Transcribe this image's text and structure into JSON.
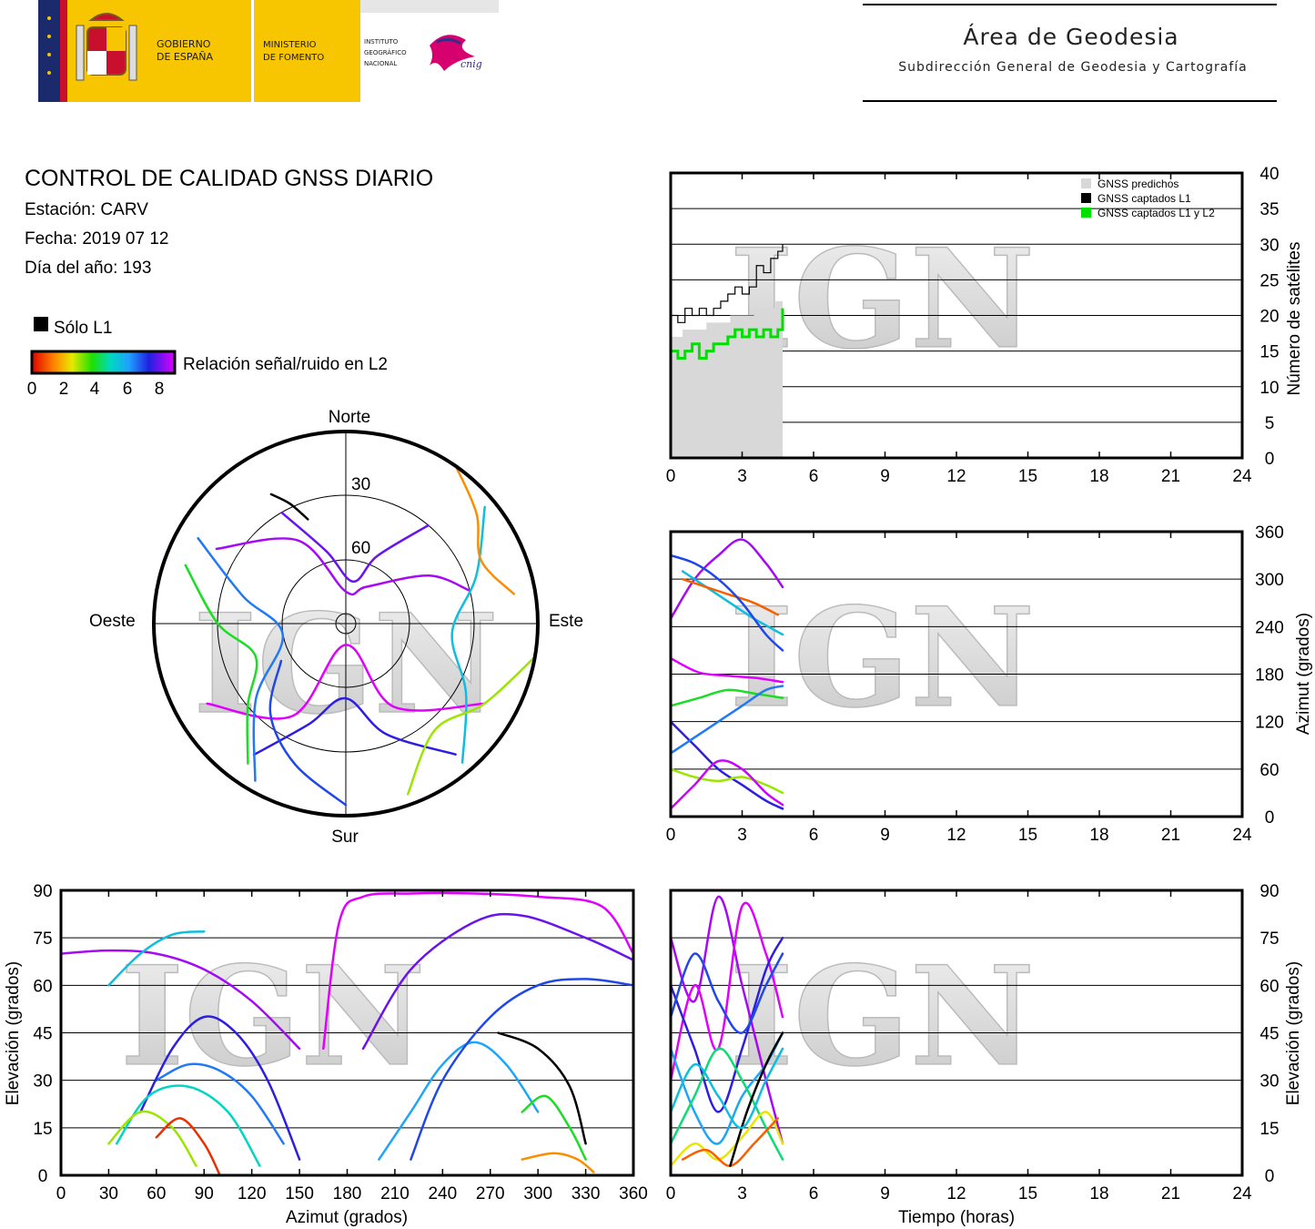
{
  "header": {
    "gov_line1": "GOBIERNO",
    "gov_line2": "DE ESPAÑA",
    "min_line1": "MINISTERIO",
    "min_line2": "DE FOMENTO",
    "ign_line1": "INSTITUTO",
    "ign_line2": "GEOGRÁFICO",
    "ign_line3": "NACIONAL",
    "cnig_text": "cnig",
    "area_title": "Área de Geodesia",
    "area_subtitle": "Subdirección General de Geodesia y Cartografía",
    "colors": {
      "red": "#c8102e",
      "yellow": "#f7c600",
      "blue": "#1a2a6c"
    }
  },
  "report": {
    "title": "CONTROL DE CALIDAD GNSS DIARIO",
    "station": "Estación: CARV",
    "date": "Fecha: 2019 07 12",
    "doy": "Día del año: 193",
    "legend_l1": "Sólo L1",
    "legend_l2": "Relación señal/ruido en L2",
    "colorbar_ticks": [
      "0",
      "2",
      "4",
      "6",
      "8"
    ]
  },
  "watermark": "IGN",
  "chart_data": [
    {
      "type": "line",
      "id": "satellite-count",
      "xlim": [
        0,
        24
      ],
      "ylim": [
        0,
        40
      ],
      "xticks": [
        "0",
        "3",
        "6",
        "9",
        "12",
        "15",
        "18",
        "21",
        "24"
      ],
      "yticks": [
        "0",
        "5",
        "10",
        "15",
        "20",
        "25",
        "30",
        "35",
        "40"
      ],
      "ylabel": "Número de satélites",
      "legend": [
        "GNSS predichos",
        "GNSS captados L1",
        "GNSS captados L1 y L2"
      ],
      "colors": {
        "predicted": "#d8d8d8",
        "l1": "#000000",
        "l1l2": "#00e000"
      },
      "series": [
        {
          "name": "GNSS predichos",
          "x": [
            0.0,
            0.5,
            1.0,
            1.5,
            2.0,
            2.5,
            3.0,
            3.5,
            4.0,
            4.4,
            4.7
          ],
          "values": [
            17,
            18,
            18,
            19,
            19,
            20,
            20,
            21,
            21,
            22,
            23
          ]
        },
        {
          "name": "GNSS captados L1",
          "x": [
            0.0,
            0.3,
            0.6,
            0.9,
            1.2,
            1.5,
            1.8,
            2.1,
            2.4,
            2.7,
            3.0,
            3.3,
            3.6,
            3.9,
            4.2,
            4.5,
            4.7
          ],
          "values": [
            20,
            19,
            21,
            20,
            21,
            20,
            21,
            22,
            23,
            24,
            23,
            24,
            27,
            26,
            28,
            29,
            30
          ]
        },
        {
          "name": "GNSS captados L1 y L2",
          "x": [
            0.0,
            0.3,
            0.6,
            0.9,
            1.2,
            1.5,
            1.8,
            2.1,
            2.4,
            2.7,
            3.0,
            3.3,
            3.6,
            3.9,
            4.2,
            4.5,
            4.7
          ],
          "values": [
            15,
            14,
            15,
            16,
            14,
            15,
            16,
            16,
            17,
            18,
            17,
            18,
            17,
            18,
            17,
            18,
            21
          ]
        }
      ]
    },
    {
      "type": "scatter",
      "id": "azimuth-time",
      "xlim": [
        0,
        24
      ],
      "ylim": [
        0,
        360
      ],
      "xticks": [
        "0",
        "3",
        "6",
        "9",
        "12",
        "15",
        "18",
        "21",
        "24"
      ],
      "yticks": [
        "0",
        "60",
        "120",
        "180",
        "240",
        "300",
        "360"
      ],
      "ylabel": "Azimut (grados)",
      "tracks": [
        {
          "snr": 8.5,
          "x": [
            0.0,
            1.0,
            2.0,
            3.0,
            4.0,
            4.7
          ],
          "values": [
            250,
            300,
            330,
            350,
            320,
            290
          ]
        },
        {
          "snr": 9.0,
          "x": [
            0.0,
            1.2,
            2.4,
            3.6,
            4.7
          ],
          "values": [
            200,
            182,
            178,
            175,
            170
          ]
        },
        {
          "snr": 7.5,
          "x": [
            0.0,
            1.0,
            2.0,
            3.0,
            4.0,
            4.7
          ],
          "values": [
            120,
            90,
            60,
            40,
            20,
            10
          ]
        },
        {
          "snr": 5.5,
          "x": [
            0.5,
            1.5,
            2.5,
            3.5,
            4.7
          ],
          "values": [
            310,
            290,
            270,
            250,
            230
          ]
        },
        {
          "snr": 4.0,
          "x": [
            0.0,
            1.2,
            2.4,
            3.6,
            4.7
          ],
          "values": [
            140,
            150,
            160,
            155,
            150
          ]
        },
        {
          "snr": 3.0,
          "x": [
            0.0,
            1.0,
            2.0,
            3.0,
            4.0,
            4.7
          ],
          "values": [
            60,
            50,
            45,
            50,
            40,
            30
          ]
        },
        {
          "snr": 6.5,
          "x": [
            0.0,
            1.0,
            2.0,
            3.0,
            4.0,
            4.7
          ],
          "values": [
            80,
            100,
            120,
            140,
            160,
            165
          ]
        },
        {
          "snr": 8.8,
          "x": [
            0.0,
            1.0,
            2.0,
            3.0,
            4.0,
            4.7
          ],
          "values": [
            10,
            40,
            70,
            60,
            30,
            15
          ]
        },
        {
          "snr": 1.0,
          "x": [
            0.5,
            1.5,
            2.5,
            3.5,
            4.5
          ],
          "values": [
            300,
            290,
            280,
            270,
            255
          ]
        },
        {
          "snr": 7.0,
          "x": [
            0.0,
            1.0,
            2.0,
            3.0,
            4.0,
            4.7
          ],
          "values": [
            330,
            320,
            300,
            270,
            230,
            210
          ]
        }
      ]
    },
    {
      "type": "scatter",
      "id": "skyplot",
      "labels": {
        "north": "Norte",
        "south": "Sur",
        "east": "Este",
        "west": "Oeste"
      },
      "ring_labels": [
        "30",
        "60"
      ],
      "tracks": [
        {
          "snr": 8.5,
          "az": [
            300,
            330,
            0,
            30,
            60,
            75
          ],
          "el": [
            20,
            45,
            75,
            70,
            45,
            30
          ]
        },
        {
          "snr": 9.0,
          "az": [
            240,
            210,
            180,
            150,
            120
          ],
          "el": [
            15,
            40,
            80,
            45,
            15
          ]
        },
        {
          "snr": 7.5,
          "az": [
            140,
            160,
            180,
            200,
            215
          ],
          "el": [
            10,
            35,
            55,
            40,
            15
          ]
        },
        {
          "snr": 5.5,
          "az": [
            50,
            70,
            95,
            120,
            140
          ],
          "el": [
            5,
            25,
            40,
            25,
            5
          ]
        },
        {
          "snr": 4.0,
          "az": [
            290,
            270,
            250,
            230,
            215
          ],
          "el": [
            10,
            30,
            45,
            30,
            10
          ]
        },
        {
          "snr": 1.5,
          "az": [
            35,
            50,
            65,
            80
          ],
          "el": [
            0,
            10,
            20,
            10
          ]
        },
        {
          "snr": 6.5,
          "az": [
            210,
            230,
            260,
            285,
            300
          ],
          "el": [
            5,
            35,
            60,
            40,
            10
          ]
        },
        {
          "snr": 8.0,
          "az": [
            330,
            345,
            10,
            25,
            40
          ],
          "el": [
            30,
            55,
            70,
            55,
            30
          ]
        },
        {
          "snr": 0.0,
          "az": [
            330,
            335,
            340
          ],
          "el": [
            20,
            28,
            38
          ],
          "l1only": true
        },
        {
          "snr": 3.0,
          "az": [
            100,
            120,
            140,
            160
          ],
          "el": [
            0,
            15,
            25,
            5
          ]
        },
        {
          "snr": 7.0,
          "az": [
            180,
            200,
            220,
            240
          ],
          "el": [
            5,
            20,
            35,
            55
          ]
        }
      ]
    },
    {
      "type": "scatter",
      "id": "elevation-azimuth",
      "xlim": [
        0,
        360
      ],
      "ylim": [
        0,
        90
      ],
      "xticks": [
        "0",
        "30",
        "60",
        "90",
        "120",
        "150",
        "180",
        "210",
        "240",
        "270",
        "300",
        "330",
        "360"
      ],
      "yticks": [
        "0",
        "15",
        "30",
        "45",
        "60",
        "75",
        "90"
      ],
      "xlabel": "Azimut (grados)",
      "ylabel": "Elevación (grados)",
      "tracks": [
        {
          "snr": 8.5,
          "x": [
            0,
            30,
            60,
            90,
            120,
            150
          ],
          "values": [
            70,
            71,
            70,
            65,
            55,
            40
          ]
        },
        {
          "snr": 9.0,
          "x": [
            165,
            175,
            190,
            220,
            260,
            300,
            340,
            360
          ],
          "values": [
            40,
            80,
            88,
            89,
            89,
            88,
            85,
            70
          ]
        },
        {
          "snr": 8.0,
          "x": [
            190,
            220,
            260,
            290,
            330,
            360
          ],
          "values": [
            40,
            65,
            80,
            82,
            75,
            68
          ]
        },
        {
          "snr": 6.5,
          "x": [
            60,
            80,
            100,
            120,
            140
          ],
          "values": [
            30,
            35,
            33,
            25,
            10
          ]
        },
        {
          "snr": 7.5,
          "x": [
            50,
            70,
            90,
            110,
            130,
            150
          ],
          "values": [
            20,
            40,
            50,
            45,
            30,
            5
          ]
        },
        {
          "snr": 5.0,
          "x": [
            35,
            55,
            80,
            105,
            125
          ],
          "values": [
            10,
            25,
            28,
            20,
            3
          ]
        },
        {
          "snr": 3.0,
          "x": [
            30,
            50,
            70,
            85
          ],
          "values": [
            10,
            20,
            15,
            3
          ]
        },
        {
          "snr": 0.5,
          "x": [
            60,
            75,
            90,
            100
          ],
          "values": [
            12,
            18,
            10,
            0
          ]
        },
        {
          "snr": 6.0,
          "x": [
            200,
            220,
            240,
            260,
            280,
            300
          ],
          "values": [
            5,
            20,
            35,
            42,
            35,
            20
          ]
        },
        {
          "snr": 7.0,
          "x": [
            220,
            240,
            270,
            300,
            330,
            360
          ],
          "values": [
            5,
            30,
            50,
            60,
            62,
            60
          ]
        },
        {
          "snr": 4.0,
          "x": [
            290,
            305,
            320,
            330
          ],
          "values": [
            20,
            25,
            15,
            5
          ]
        },
        {
          "snr": 1.5,
          "x": [
            290,
            310,
            325,
            335
          ],
          "values": [
            5,
            7,
            5,
            1
          ]
        },
        {
          "snr": 0.0,
          "x": [
            275,
            300,
            320,
            330
          ],
          "values": [
            45,
            40,
            28,
            10
          ],
          "l1only": true
        },
        {
          "snr": 5.5,
          "x": [
            30,
            50,
            70,
            90
          ],
          "values": [
            60,
            70,
            76,
            77
          ]
        }
      ]
    },
    {
      "type": "scatter",
      "id": "elevation-time",
      "xlim": [
        0,
        24
      ],
      "ylim": [
        0,
        90
      ],
      "xticks": [
        "0",
        "3",
        "6",
        "9",
        "12",
        "15",
        "18",
        "21",
        "24"
      ],
      "yticks": [
        "0",
        "15",
        "30",
        "45",
        "60",
        "75",
        "90"
      ],
      "xlabel": "Tiempo (horas)",
      "ylabel": "Elevación (grados)",
      "tracks": [
        {
          "snr": 8.5,
          "x": [
            0.0,
            1.0,
            2.0,
            3.0,
            4.0,
            4.7
          ],
          "values": [
            75,
            55,
            88,
            60,
            30,
            10
          ]
        },
        {
          "snr": 9.0,
          "x": [
            0.0,
            1.0,
            2.0,
            3.0,
            4.0,
            4.7
          ],
          "values": [
            30,
            60,
            40,
            85,
            70,
            50
          ]
        },
        {
          "snr": 7.5,
          "x": [
            0.0,
            1.0,
            2.0,
            3.0,
            4.0,
            4.7
          ],
          "values": [
            60,
            40,
            20,
            40,
            65,
            75
          ]
        },
        {
          "snr": 6.0,
          "x": [
            0.0,
            1.0,
            2.0,
            3.0,
            4.0,
            4.7
          ],
          "values": [
            40,
            20,
            10,
            25,
            35,
            45
          ]
        },
        {
          "snr": 4.5,
          "x": [
            0.0,
            1.0,
            2.0,
            3.0,
            4.0,
            4.7
          ],
          "values": [
            10,
            25,
            40,
            30,
            15,
            5
          ]
        },
        {
          "snr": 2.5,
          "x": [
            0.0,
            1.0,
            2.0,
            3.0,
            4.0,
            4.7
          ],
          "values": [
            3,
            10,
            5,
            12,
            20,
            10
          ]
        },
        {
          "snr": 1.0,
          "x": [
            0.5,
            1.5,
            2.5,
            3.5,
            4.5
          ],
          "values": [
            5,
            8,
            3,
            10,
            18
          ]
        },
        {
          "snr": 0.0,
          "x": [
            2.5,
            3.2,
            4.0,
            4.7
          ],
          "values": [
            3,
            20,
            35,
            45
          ],
          "l1only": true
        },
        {
          "snr": 7.0,
          "x": [
            0.0,
            1.0,
            2.0,
            3.0,
            4.0,
            4.7
          ],
          "values": [
            50,
            70,
            55,
            45,
            60,
            70
          ]
        },
        {
          "snr": 5.5,
          "x": [
            0.0,
            1.0,
            2.0,
            3.0,
            4.0,
            4.7
          ],
          "values": [
            20,
            35,
            25,
            15,
            30,
            40
          ]
        }
      ]
    }
  ]
}
